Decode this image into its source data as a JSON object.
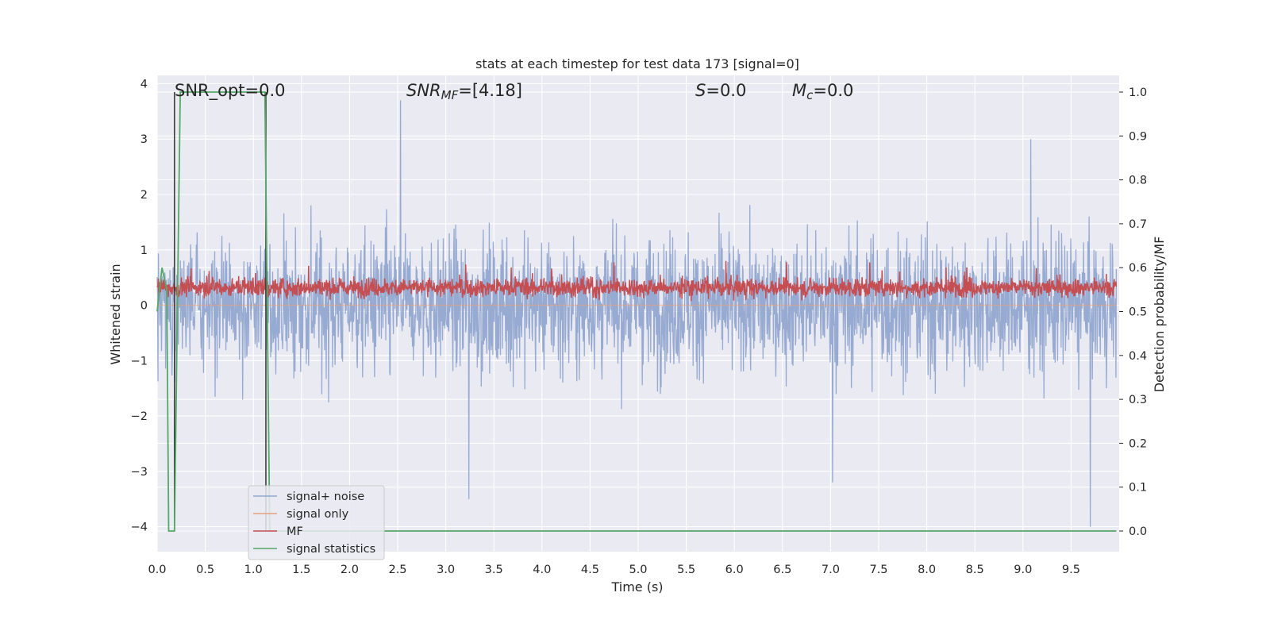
{
  "chart_data": {
    "type": "line",
    "title": "stats at each timestep for test data 173 [signal=0]",
    "xlabel": "Time (s)",
    "ylabel": "Whitened strain",
    "ylabel_right": "Detection probability/MF",
    "xlim": [
      0.0,
      10.0
    ],
    "ylim": [
      -4.45,
      4.15
    ],
    "ylim_right": [
      -0.047,
      1.038
    ],
    "grid": true,
    "legend_position": "lower-left",
    "x_ticks": [
      "0.0",
      "0.5",
      "1.0",
      "1.5",
      "2.0",
      "2.5",
      "3.0",
      "3.5",
      "4.0",
      "4.5",
      "5.0",
      "5.5",
      "6.0",
      "6.5",
      "7.0",
      "7.5",
      "8.0",
      "8.5",
      "9.0",
      "9.5"
    ],
    "y_ticks": [
      "4",
      "3",
      "2",
      "1",
      "0",
      "−1",
      "−2",
      "−3",
      "−4"
    ],
    "y_ticks_right": [
      "1.0",
      "0.9",
      "0.8",
      "0.7",
      "0.6",
      "0.5",
      "0.4",
      "0.3",
      "0.2",
      "0.1",
      "0.0"
    ],
    "annotations": [
      {
        "prefix": "SNR_opt",
        "value": "=0.0"
      },
      {
        "prefix": "SNR",
        "sub": "MF",
        "value": "=[4.18]"
      },
      {
        "prefix": "S",
        "value": "=0.0"
      },
      {
        "prefix": "M",
        "sub": "c",
        "value": "=0.0"
      }
    ],
    "series": [
      {
        "name": "signal+ noise",
        "color": "#92a7cf",
        "axis": "left",
        "description_values": {
          "range": [
            -4.0,
            3.7
          ],
          "typical_band": [
            -1.7,
            1.9
          ],
          "peaks": [
            {
              "x": 2.53,
              "y": 3.7
            },
            {
              "x": 3.24,
              "y": -3.5
            },
            {
              "x": 9.7,
              "y": -4.0
            },
            {
              "x": 7.02,
              "y": -3.2
            },
            {
              "x": 9.08,
              "y": 3.0
            }
          ]
        }
      },
      {
        "name": "signal only",
        "color": "#e5a17f",
        "axis": "left",
        "values_constant": 0.0
      },
      {
        "name": "MF",
        "color": "#c44e52",
        "axis": "left",
        "description_values": {
          "range": [
            0.0,
            1.0
          ],
          "typical_band": [
            0.05,
            0.6
          ]
        }
      },
      {
        "name": "signal statistics",
        "color": "#55a868",
        "axis": "right",
        "x": [
          0.0,
          0.05,
          0.1,
          0.12,
          0.18,
          0.24,
          0.28,
          1.1,
          1.12,
          1.16,
          1.17,
          1.22,
          9.97
        ],
        "values": [
          0.5,
          0.6,
          0.55,
          0.0,
          0.0,
          1.0,
          1.0,
          1.0,
          1.0,
          0.2,
          0.0,
          0.0,
          0.0
        ]
      }
    ],
    "vertical_markers": [
      {
        "x": 0.18,
        "color": "#333333"
      },
      {
        "x": 1.13,
        "color": "#333333"
      }
    ]
  }
}
